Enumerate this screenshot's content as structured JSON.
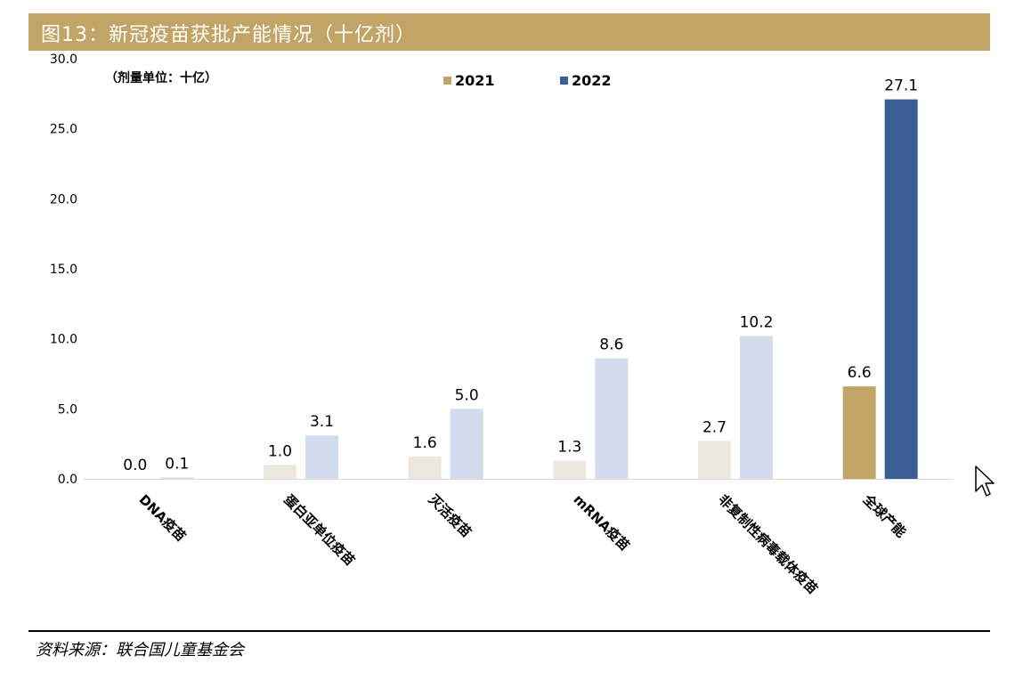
{
  "figure": {
    "title": "图13：新冠疫苗获批产能情况（十亿剂）",
    "source": "资料来源：联合国儿童基金会",
    "cursor_icon": "mouse-pointer-icon"
  },
  "chart_data": {
    "type": "bar",
    "unit_note": "（剂量单位：十亿）",
    "categories": [
      "DNA疫苗",
      "蛋白亚单位疫苗",
      "灭活疫苗",
      "mRNA疫苗",
      "非复制性病毒载体疫苗",
      "全球产能"
    ],
    "series": [
      {
        "name": "2021",
        "values": [
          0.0,
          1.0,
          1.6,
          1.3,
          2.7,
          6.6
        ],
        "labels": [
          "0.0",
          "1.0",
          "1.6",
          "1.3",
          "2.7",
          "6.6"
        ]
      },
      {
        "name": "2022",
        "values": [
          0.1,
          3.1,
          5.0,
          8.6,
          10.2,
          27.1
        ],
        "labels": [
          "0.1",
          "3.1",
          "5.0",
          "8.6",
          "10.2",
          "27.1"
        ]
      }
    ],
    "colors": {
      "2021_normal": "#ece8de",
      "2022_normal": "#d3dcec",
      "2021_highlight": "#c2a467",
      "2022_highlight": "#3a5f94",
      "2022_legend": "#3a5f94",
      "2021_legend": "#c2a467"
    },
    "highlight_category": "全球产能",
    "ylim": [
      0,
      30
    ],
    "yticks": [
      "0.0",
      "5.0",
      "10.0",
      "15.0",
      "20.0",
      "25.0",
      "30.0"
    ],
    "ytick_values": [
      0,
      5,
      10,
      15,
      20,
      25,
      30
    ],
    "legend_position": "top-center",
    "grid": false
  }
}
